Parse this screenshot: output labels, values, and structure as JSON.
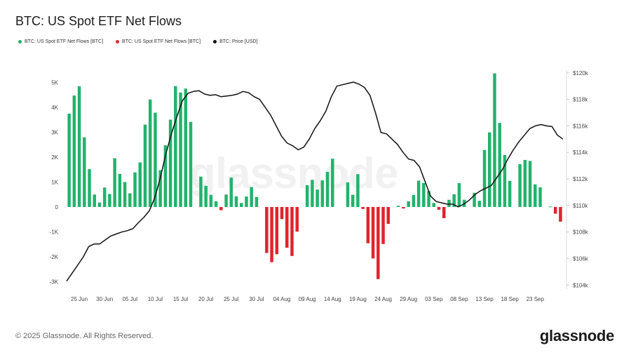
{
  "title": "BTC: US Spot ETF Net Flows",
  "legend": [
    {
      "label": "BTC: US Spot ETF Net Flows [BTC]",
      "color": "#22b36b"
    },
    {
      "label": "BTC: US Spot ETF Net Flows [BTC]",
      "color": "#e0242d"
    },
    {
      "label": "BTC: Price [USD]",
      "color": "#111111"
    }
  ],
  "watermark": "glassnode",
  "footer": {
    "copyright": "© 2025 Glassnode. All Rights Reserved.",
    "logo": "glassnode"
  },
  "chart_data": {
    "type": "bar",
    "title": "BTC: US Spot ETF Net Flows",
    "x_tick_labels": [
      "25 Jun",
      "30 Jun",
      "05 Jul",
      "10 Jul",
      "15 Jul",
      "20 Jul",
      "25 Jul",
      "30 Jul",
      "04 Aug",
      "09 Aug",
      "14 Aug",
      "19 Aug",
      "24 Aug",
      "29 Aug",
      "03 Sep",
      "08 Sep",
      "13 Sep",
      "18 Sep",
      "23 Sep"
    ],
    "y_left": {
      "ticks": [
        -3000,
        -2000,
        -1000,
        0,
        1000,
        2000,
        3000,
        4000,
        5000
      ],
      "tick_labels": [
        "-3K",
        "-2K",
        "-1K",
        "0",
        "1K",
        "2K",
        "3K",
        "4K",
        "5K"
      ],
      "range": [
        -3300,
        5500
      ]
    },
    "y_right": {
      "ticks": [
        104000,
        106000,
        108000,
        110000,
        112000,
        114000,
        116000,
        118000,
        120000
      ],
      "tick_labels": [
        "$104k",
        "$106k",
        "$108k",
        "$110k",
        "$112k",
        "$114k",
        "$116k",
        "$118k",
        "$120k"
      ],
      "range": [
        103700,
        120200
      ]
    },
    "positive_color": "#22b36b",
    "negative_color": "#e0242d",
    "line_color": "#111111",
    "series": [
      {
        "name": "BTC: US Spot ETF Net Flows [BTC]",
        "values": [
          3750,
          4480,
          4850,
          2800,
          1520,
          500,
          180,
          780,
          520,
          1960,
          1330,
          1000,
          550,
          1390,
          1790,
          3310,
          4320,
          3790,
          1480,
          2480,
          3510,
          4860,
          4600,
          4760,
          3420,
          0,
          1220,
          850,
          490,
          230,
          -130,
          500,
          1180,
          430,
          160,
          420,
          800,
          400,
          0,
          -1850,
          -2220,
          -1900,
          -490,
          -1640,
          -1970,
          -990,
          0,
          880,
          1090,
          700,
          1070,
          1410,
          1940,
          0,
          0,
          990,
          490,
          1320,
          -80,
          -1460,
          -2070,
          -2900,
          -1490,
          -680,
          0,
          50,
          -60,
          230,
          480,
          1060,
          960,
          640,
          160,
          -110,
          -450,
          290,
          510,
          960,
          290,
          0,
          570,
          250,
          2290,
          3000,
          5370,
          3380,
          2090,
          1050,
          0,
          1720,
          1890,
          1850,
          910,
          790,
          0,
          20,
          -270,
          -590
        ],
        "dates_start": "2025-06-23"
      },
      {
        "name": "BTC: Price [USD]",
        "values": [
          104300,
          104900,
          105500,
          106100,
          106900,
          107100,
          107100,
          107400,
          107700,
          107850,
          108000,
          108100,
          108250,
          108700,
          109100,
          109600,
          110600,
          112100,
          113900,
          115400,
          116700,
          117900,
          118450,
          118600,
          118650,
          118400,
          118300,
          118350,
          118200,
          118250,
          118300,
          118400,
          118600,
          118500,
          118200,
          118000,
          117400,
          116800,
          116000,
          115200,
          114700,
          114500,
          114200,
          114400,
          115000,
          115800,
          116400,
          117100,
          118200,
          119000,
          119100,
          119200,
          119300,
          119150,
          118900,
          118300,
          117000,
          115500,
          115400,
          115000,
          114600,
          114000,
          113500,
          113400,
          112900,
          111800,
          110700,
          110300,
          110200,
          110100,
          110100,
          109900,
          110100,
          110400,
          110800,
          111100,
          111300,
          111500,
          112100,
          112700,
          113500,
          114200,
          114800,
          115300,
          115800,
          116000,
          116100,
          116000,
          115950,
          115300,
          115000
        ]
      }
    ],
    "grid": true
  }
}
